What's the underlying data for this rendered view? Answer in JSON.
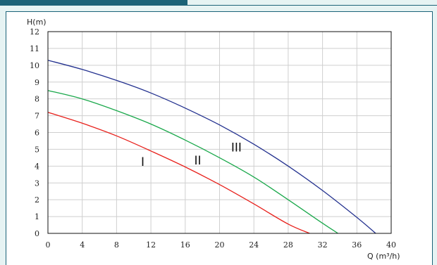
{
  "chart_data": {
    "type": "line",
    "ylabel": "H(m)",
    "xlabel": "Q (m³/h)",
    "xlim": [
      0,
      40
    ],
    "ylim": [
      0,
      12
    ],
    "xticks": [
      "0",
      "4",
      "8",
      "12",
      "16",
      "20",
      "24",
      "28",
      "32",
      "36",
      "40"
    ],
    "yticks": [
      "0",
      "1",
      "2",
      "3",
      "4",
      "5",
      "6",
      "7",
      "8",
      "9",
      "10",
      "11",
      "12"
    ],
    "grid": true,
    "series": [
      {
        "name": "I",
        "color": "#e8211c",
        "x": [
          0,
          4,
          8,
          12,
          16,
          20,
          24,
          28,
          30.5
        ],
        "y": [
          7.2,
          6.55,
          5.8,
          4.9,
          3.95,
          2.9,
          1.75,
          0.55,
          0
        ]
      },
      {
        "name": "II",
        "color": "#1aa84b",
        "x": [
          0,
          4,
          8,
          12,
          16,
          20,
          24,
          28,
          32,
          33.8
        ],
        "y": [
          8.5,
          8.0,
          7.3,
          6.5,
          5.55,
          4.5,
          3.35,
          2.0,
          0.6,
          0
        ]
      },
      {
        "name": "III",
        "color": "#23318f",
        "x": [
          0,
          4,
          8,
          12,
          16,
          20,
          24,
          28,
          32,
          36,
          38.2
        ],
        "y": [
          10.3,
          9.75,
          9.1,
          8.35,
          7.45,
          6.45,
          5.3,
          4.0,
          2.55,
          0.95,
          0
        ]
      }
    ]
  }
}
